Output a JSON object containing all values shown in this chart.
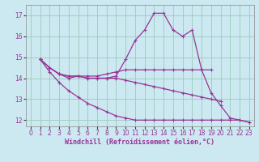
{
  "xlabel": "Windchill (Refroidissement éolien,°C)",
  "background_color": "#cce8f0",
  "grid_color": "#99ccbb",
  "line_color": "#993399",
  "xlim": [
    -0.5,
    23.5
  ],
  "ylim": [
    11.7,
    17.5
  ],
  "yticks": [
    12,
    13,
    14,
    15,
    16,
    17
  ],
  "xticks": [
    0,
    1,
    2,
    3,
    4,
    5,
    6,
    7,
    8,
    9,
    10,
    11,
    12,
    13,
    14,
    15,
    16,
    17,
    18,
    19,
    20,
    21,
    22,
    23
  ],
  "series": [
    {
      "x": [
        1,
        2,
        3,
        4,
        5,
        6,
        7,
        8,
        9,
        10,
        11,
        12,
        13,
        14,
        15,
        16,
        17,
        18,
        19,
        20,
        21,
        22,
        23
      ],
      "y": [
        14.9,
        14.5,
        14.2,
        14.0,
        14.1,
        14.0,
        14.0,
        14.0,
        14.1,
        14.9,
        15.8,
        16.3,
        17.1,
        17.1,
        16.3,
        16.0,
        16.3,
        14.4,
        13.3,
        12.7,
        12.1,
        12.0,
        11.9
      ]
    },
    {
      "x": [
        1,
        2,
        3,
        4,
        5,
        6,
        7,
        8,
        9,
        10,
        11,
        12,
        13,
        14,
        15,
        16,
        17,
        18,
        19
      ],
      "y": [
        14.9,
        14.5,
        14.2,
        14.1,
        14.1,
        14.1,
        14.1,
        14.2,
        14.3,
        14.4,
        14.4,
        14.4,
        14.4,
        14.4,
        14.4,
        14.4,
        14.4,
        14.4,
        14.4
      ]
    },
    {
      "x": [
        1,
        2,
        3,
        4,
        5,
        6,
        7,
        8,
        9,
        10,
        11,
        12,
        13,
        14,
        15,
        16,
        17,
        18,
        19,
        20
      ],
      "y": [
        14.9,
        14.5,
        14.2,
        14.1,
        14.1,
        14.0,
        14.0,
        14.0,
        14.0,
        13.9,
        13.8,
        13.7,
        13.6,
        13.5,
        13.4,
        13.3,
        13.2,
        13.1,
        13.0,
        12.9
      ]
    },
    {
      "x": [
        1,
        2,
        3,
        4,
        5,
        6,
        7,
        8,
        9,
        10,
        11,
        12,
        13,
        14,
        15,
        16,
        17,
        18,
        19,
        20,
        21,
        22,
        23
      ],
      "y": [
        14.9,
        14.3,
        13.8,
        13.4,
        13.1,
        12.8,
        12.6,
        12.4,
        12.2,
        12.1,
        12.0,
        12.0,
        12.0,
        12.0,
        12.0,
        12.0,
        12.0,
        12.0,
        12.0,
        12.0,
        12.0,
        12.0,
        11.9
      ]
    }
  ],
  "xlabel_fontsize": 6,
  "tick_labelsize": 5.5,
  "linewidth": 0.9,
  "markersize": 2.5
}
